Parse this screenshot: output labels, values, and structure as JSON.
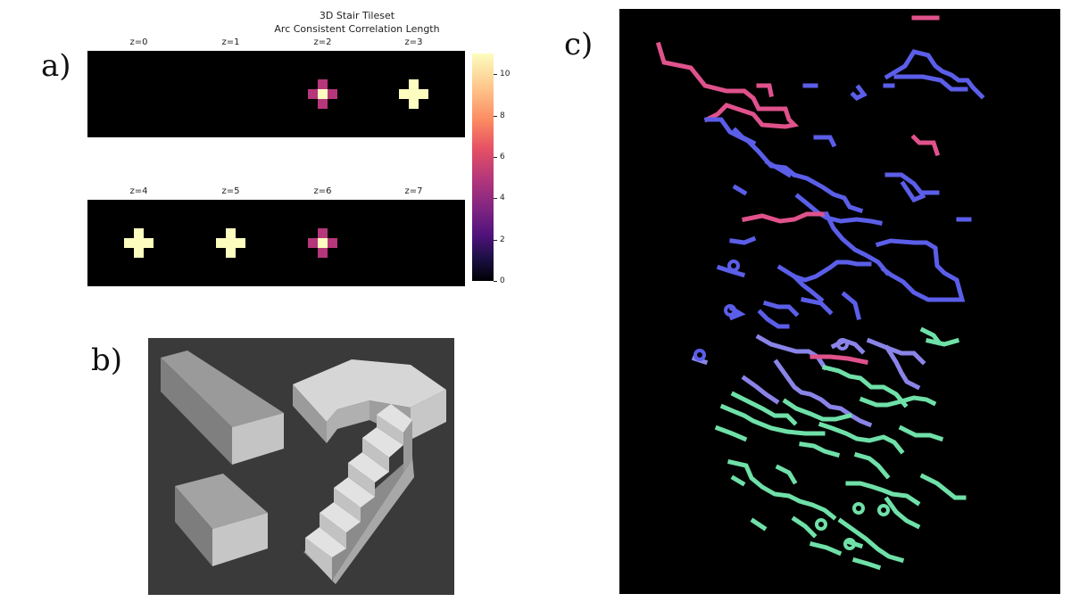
{
  "panel_labels": {
    "a": "a)",
    "b": "b)",
    "c": "c)"
  },
  "figure_a": {
    "title_line1": "3D Stair Tileset",
    "title_line2": "Arc Consistent Correlation Length",
    "slices": [
      {
        "label": "z=0",
        "pattern": "empty"
      },
      {
        "label": "z=1",
        "pattern": "empty"
      },
      {
        "label": "z=2",
        "pattern": "gradient-cross"
      },
      {
        "label": "z=3",
        "pattern": "full-cross"
      },
      {
        "label": "z=4",
        "pattern": "full-cross"
      },
      {
        "label": "z=5",
        "pattern": "full-cross"
      },
      {
        "label": "z=6",
        "pattern": "gradient-cross"
      },
      {
        "label": "z=7",
        "pattern": "empty"
      }
    ],
    "colors": {
      "bright": "#fcfdbf",
      "mid": "#b5367a",
      "background": "#000000"
    }
  },
  "colorbar": {
    "ticks": [
      "0",
      "2",
      "4",
      "6",
      "8",
      "10"
    ],
    "min": 0,
    "max": 11
  },
  "tiles": [
    "straight-beam",
    "corner-piece",
    "short-block",
    "stairs"
  ],
  "render_colors": {
    "tile_background": "#3a3a3a",
    "path_blue": "#5b5ee8",
    "path_pink": "#e0528c",
    "path_green": "#6fe0a8",
    "render_background": "#000000"
  }
}
